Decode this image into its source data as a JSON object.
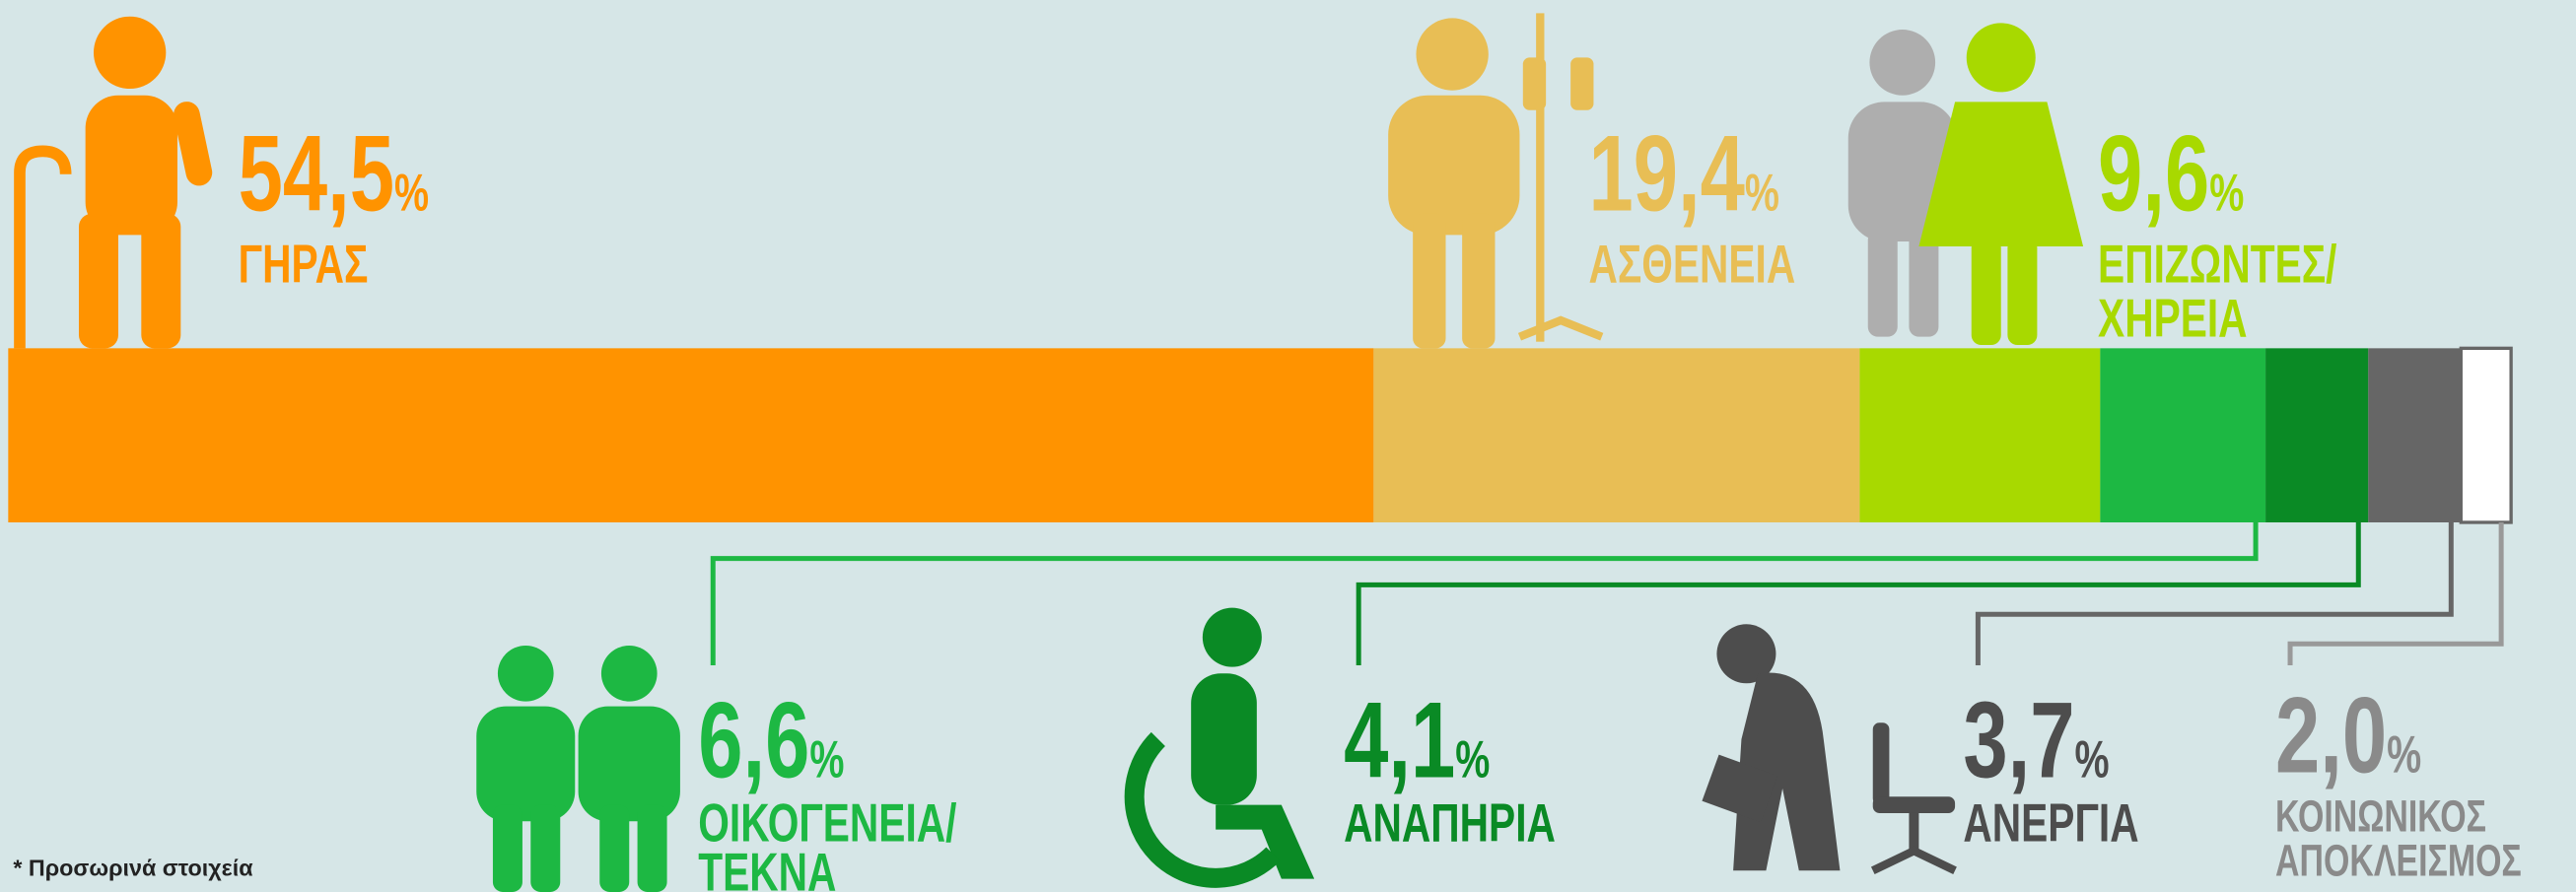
{
  "chart_data": {
    "type": "stacked-bar",
    "categories": [
      [
        "ΓΗΡΑΣ"
      ],
      [
        "ΑΣΘΕΝΕΙΑ"
      ],
      [
        "ΕΠΙΖΩΝΤΕΣ/",
        "ΧΗΡΕΙΑ"
      ],
      [
        "ΟΙΚΟΓΕΝΕΙΑ/",
        "ΤΕΚΝΑ"
      ],
      [
        "ΑΝΑΠΗΡΙΑ"
      ],
      [
        "ΑΝΕΡΓΙΑ"
      ],
      [
        "ΚΟΙΝΩΝΙΚΟΣ",
        "ΑΠΟΚΛΕΙΣΜΟΣ"
      ]
    ],
    "values": [
      54.5,
      19.4,
      9.6,
      6.6,
      4.1,
      3.7,
      2.0
    ],
    "value_labels": [
      "54,5",
      "19,4",
      "9,6",
      "6,6",
      "4,1",
      "3,7",
      "2,0"
    ],
    "unit": "%",
    "colors": [
      "#ff9300",
      "#e8be55",
      "#a8d900",
      "#1db843",
      "#0a8a25",
      "#666666",
      "#ffffff"
    ],
    "text_colors": [
      "#ff9300",
      "#e8be55",
      "#a8d900",
      "#1db843",
      "#0a8a25",
      "#4d4d4d",
      "#8a8a8a"
    ],
    "xlim": [
      0,
      100
    ],
    "note": "* Προσωρινά στοιχεία"
  }
}
